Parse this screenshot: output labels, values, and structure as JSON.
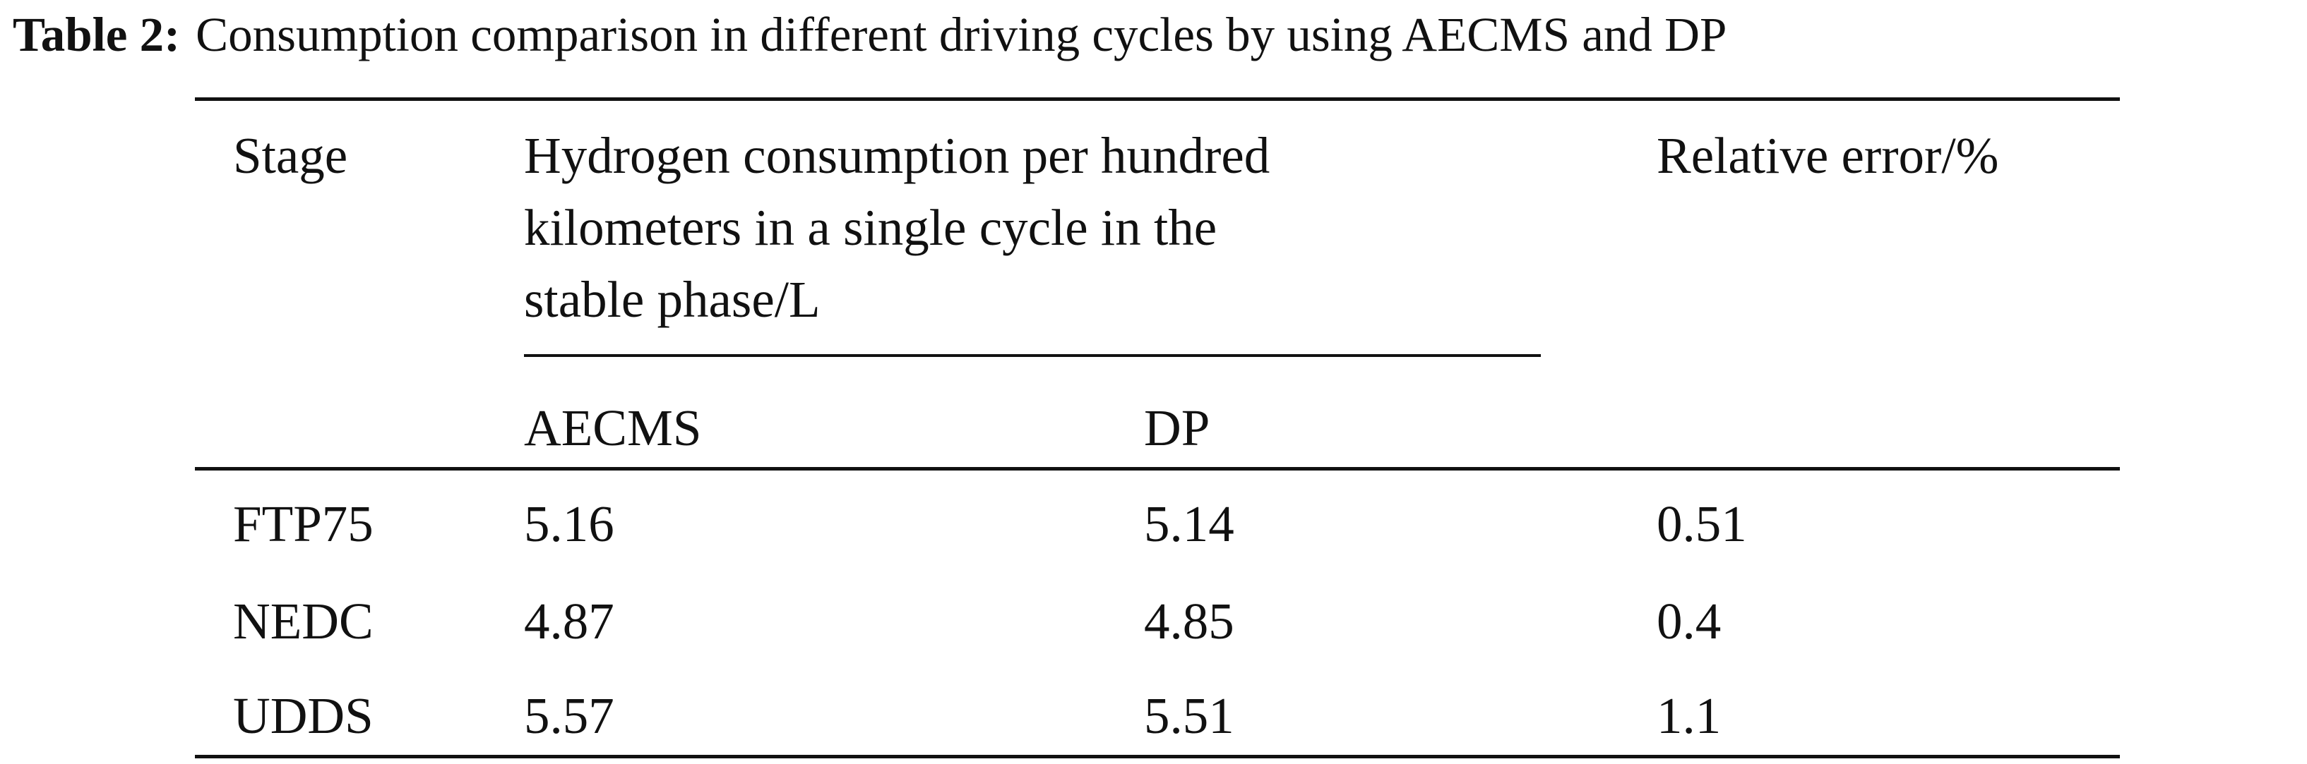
{
  "caption": {
    "label": "Table 2:",
    "text": "Consumption comparison in different driving cycles by using AECMS and DP"
  },
  "header": {
    "stage": "Stage",
    "consumption_lines": [
      "Hydrogen consumption per hundred",
      "kilometers in a single cycle in the",
      "stable phase/L"
    ],
    "relative_error": "Relative error/%",
    "sub_aecms": "AECMS",
    "sub_dp": "DP"
  },
  "rows": [
    {
      "stage": "FTP75",
      "aecms": "5.16",
      "dp": "5.14",
      "error": "0.51"
    },
    {
      "stage": "NEDC",
      "aecms": "4.87",
      "dp": "4.85",
      "error": "0.4"
    },
    {
      "stage": "UDDS",
      "aecms": "5.57",
      "dp": "5.51",
      "error": "1.1"
    }
  ]
}
